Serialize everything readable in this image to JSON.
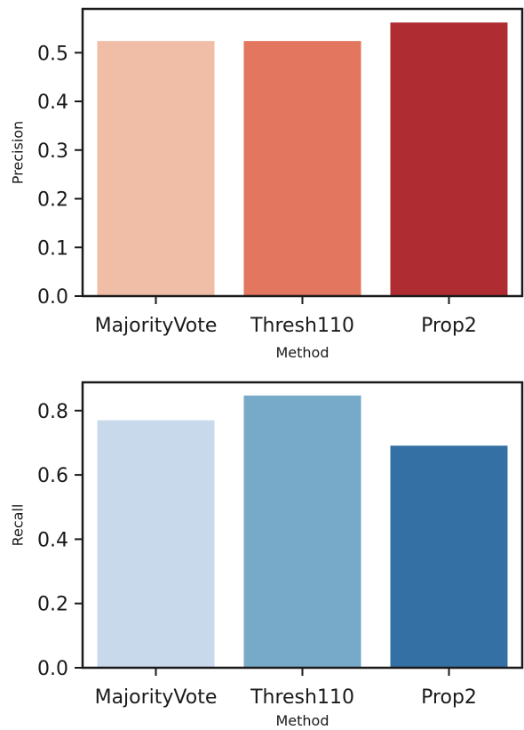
{
  "chart_data": [
    {
      "type": "bar",
      "title": "",
      "xlabel": "Method",
      "ylabel": "Precision",
      "categories": [
        "MajorityVote",
        "Thresh110",
        "Prop2"
      ],
      "values": [
        0.524,
        0.524,
        0.562
      ],
      "colors": [
        "#f0bda7",
        "#e2765e",
        "#b02c33"
      ],
      "ylim": [
        0,
        0.59
      ],
      "yticks": [
        0.0,
        0.1,
        0.2,
        0.3,
        0.4,
        0.5
      ],
      "ytick_labels": [
        "0.0",
        "0.1",
        "0.2",
        "0.3",
        "0.4",
        "0.5"
      ],
      "grid": false,
      "legend": false
    },
    {
      "type": "bar",
      "title": "",
      "xlabel": "Method",
      "ylabel": "Recall",
      "categories": [
        "MajorityVote",
        "Thresh110",
        "Prop2"
      ],
      "values": [
        0.77,
        0.847,
        0.691
      ],
      "colors": [
        "#c7d9ea",
        "#77a9c9",
        "#3470a3"
      ],
      "ylim": [
        0,
        0.888
      ],
      "yticks": [
        0.0,
        0.2,
        0.4,
        0.6,
        0.8
      ],
      "ytick_labels": [
        "0.0",
        "0.2",
        "0.4",
        "0.6",
        "0.8"
      ],
      "grid": false,
      "legend": false
    }
  ]
}
